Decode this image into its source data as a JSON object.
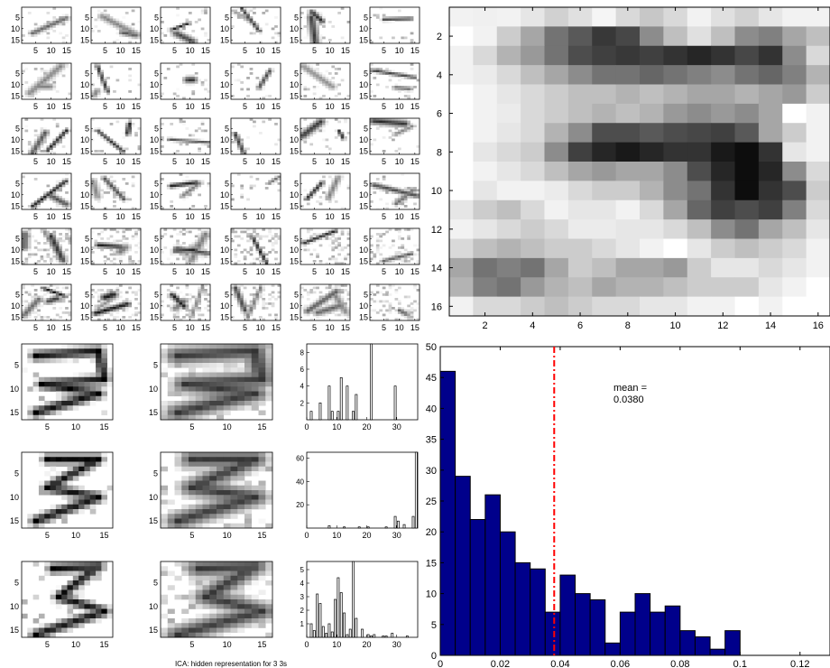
{
  "figure": {
    "caption": "ICA: hidden representation for 3 3s"
  },
  "panels": {
    "basis_grid": {
      "rows": 6,
      "cols": 6,
      "ticks": [
        5,
        10,
        15
      ],
      "xtick_labels": [
        "5",
        "10",
        "15"
      ],
      "ytick_labels": [
        "5",
        "10",
        "15"
      ]
    },
    "reconstruction_rows": [
      {
        "digit_label": "3 (first example)",
        "hist_yticks": [
          2,
          4,
          6,
          8
        ],
        "hist_ymax": 9,
        "hist_values": [
          0,
          1,
          0,
          0,
          2,
          0,
          0,
          4,
          1,
          0,
          1,
          5,
          0,
          4,
          0,
          1,
          3,
          0,
          0,
          0,
          0,
          9,
          0,
          0,
          0,
          0,
          0,
          0,
          0,
          4,
          0,
          0,
          0,
          0,
          0,
          0,
          0
        ]
      },
      {
        "digit_label": "3 (second example)",
        "hist_yticks": [
          20,
          40,
          60
        ],
        "hist_ymax": 65,
        "hist_values": [
          0,
          0,
          0,
          0,
          0,
          0,
          0,
          2,
          0,
          0,
          0,
          0,
          1,
          0,
          0,
          0,
          0,
          1,
          0,
          0,
          1,
          0,
          0,
          0,
          0,
          0,
          1,
          0,
          0,
          10,
          6,
          0,
          3,
          0,
          0,
          10,
          65
        ]
      },
      {
        "digit_label": "3 (third example)",
        "hist_yticks": [
          1,
          2,
          3,
          4,
          5
        ],
        "hist_ymax": 5.6,
        "hist_values": [
          0,
          1,
          0.5,
          3.2,
          2.5,
          0.8,
          0.3,
          1,
          0.4,
          2.8,
          4.4,
          3.3,
          1.8,
          0.2,
          0.6,
          5.6,
          1.4,
          0,
          0.6,
          0,
          0.2,
          0.1,
          0.2,
          0,
          0,
          0.1,
          0.1,
          0,
          0.3,
          0,
          0,
          0,
          0,
          0.1,
          0,
          0,
          0
        ]
      }
    ],
    "reconstruction_axes": {
      "xtick_labels": [
        "5",
        "10",
        "15"
      ],
      "ytick_labels": [
        "5",
        "10",
        "15"
      ],
      "hist_xtick_labels": [
        "0",
        "10",
        "20",
        "30"
      ]
    }
  },
  "chart_data": [
    {
      "type": "heatmap",
      "title": "",
      "xlabel": "",
      "ylabel": "",
      "xlim": [
        0.5,
        16.5
      ],
      "ylim": [
        0.5,
        16.5
      ],
      "xticks": [
        2,
        4,
        6,
        8,
        10,
        12,
        14,
        16
      ],
      "yticks": [
        2,
        4,
        6,
        8,
        10,
        12,
        14,
        16
      ],
      "colormap": "gray_reversed",
      "values": [
        [
          0.05,
          0.06,
          0.05,
          0.1,
          0.18,
          0.12,
          0.04,
          0.15,
          0.22,
          0.15,
          0.05,
          0.12,
          0.18,
          0.1,
          0.05,
          0.05
        ],
        [
          0.0,
          0.05,
          0.2,
          0.35,
          0.55,
          0.65,
          0.78,
          0.72,
          0.45,
          0.25,
          0.12,
          0.25,
          0.45,
          0.5,
          0.35,
          0.25
        ],
        [
          0.05,
          0.15,
          0.3,
          0.4,
          0.55,
          0.7,
          0.75,
          0.78,
          0.75,
          0.8,
          0.85,
          0.8,
          0.72,
          0.8,
          0.45,
          0.15
        ],
        [
          0.05,
          0.08,
          0.15,
          0.25,
          0.35,
          0.45,
          0.55,
          0.55,
          0.6,
          0.55,
          0.5,
          0.45,
          0.55,
          0.6,
          0.5,
          0.3
        ],
        [
          0.0,
          0.05,
          0.1,
          0.15,
          0.2,
          0.25,
          0.25,
          0.3,
          0.25,
          0.3,
          0.35,
          0.35,
          0.3,
          0.35,
          0.4,
          0.2
        ],
        [
          0.0,
          0.05,
          0.08,
          0.15,
          0.2,
          0.25,
          0.3,
          0.25,
          0.3,
          0.4,
          0.45,
          0.4,
          0.45,
          0.35,
          0.0,
          0.05
        ],
        [
          0.0,
          0.05,
          0.1,
          0.15,
          0.3,
          0.45,
          0.7,
          0.7,
          0.65,
          0.7,
          0.72,
          0.75,
          0.65,
          0.35,
          0.2,
          0.05
        ],
        [
          0.0,
          0.1,
          0.15,
          0.2,
          0.45,
          0.75,
          0.85,
          0.9,
          0.85,
          0.8,
          0.8,
          0.9,
          0.95,
          0.8,
          0.1,
          0.05
        ],
        [
          0.0,
          0.05,
          0.1,
          0.15,
          0.25,
          0.35,
          0.4,
          0.35,
          0.35,
          0.45,
          0.7,
          0.85,
          0.95,
          0.85,
          0.45,
          0.15
        ],
        [
          0.0,
          0.1,
          0.05,
          0.05,
          0.08,
          0.15,
          0.2,
          0.2,
          0.3,
          0.45,
          0.55,
          0.8,
          0.95,
          0.8,
          0.7,
          0.2
        ],
        [
          0.1,
          0.2,
          0.25,
          0.15,
          0.05,
          0.1,
          0.1,
          0.05,
          0.15,
          0.35,
          0.6,
          0.75,
          0.7,
          0.75,
          0.5,
          0.15
        ],
        [
          0.05,
          0.1,
          0.15,
          0.2,
          0.15,
          0.08,
          0.08,
          0.1,
          0.1,
          0.15,
          0.25,
          0.45,
          0.55,
          0.35,
          0.25,
          0.1
        ],
        [
          0.15,
          0.25,
          0.3,
          0.25,
          0.2,
          0.2,
          0.15,
          0.1,
          0.05,
          0.0,
          0.1,
          0.2,
          0.25,
          0.2,
          0.15,
          0.05
        ],
        [
          0.35,
          0.55,
          0.5,
          0.55,
          0.35,
          0.2,
          0.25,
          0.35,
          0.35,
          0.4,
          0.2,
          0.1,
          0.1,
          0.15,
          0.1,
          0.05
        ],
        [
          0.3,
          0.5,
          0.55,
          0.4,
          0.3,
          0.25,
          0.35,
          0.3,
          0.3,
          0.25,
          0.2,
          0.2,
          0.2,
          0.1,
          0.05,
          0.0
        ],
        [
          0.05,
          0.15,
          0.15,
          0.2,
          0.25,
          0.2,
          0.15,
          0.15,
          0.1,
          0.1,
          0.05,
          0.05,
          0.0,
          0.05,
          0.0,
          0.0
        ]
      ]
    },
    {
      "type": "bar",
      "title": "",
      "xlabel": "",
      "ylabel": "",
      "bin_edges": [
        0.0,
        0.005,
        0.01,
        0.015,
        0.02,
        0.025,
        0.03,
        0.035,
        0.04,
        0.045,
        0.05,
        0.055,
        0.06,
        0.065,
        0.07,
        0.075,
        0.08,
        0.085,
        0.09,
        0.095,
        0.1,
        0.105,
        0.11,
        0.115,
        0.12,
        0.125,
        0.13
      ],
      "values": [
        46,
        29,
        22,
        26,
        20,
        15,
        14,
        7,
        13,
        10,
        9,
        2,
        7,
        10,
        7,
        8,
        4,
        3,
        1,
        4,
        0,
        0,
        0,
        0,
        0,
        0
      ],
      "xlim": [
        0,
        0.13
      ],
      "ylim": [
        0,
        50
      ],
      "xticks": [
        0,
        0.02,
        0.04,
        0.06,
        0.08,
        0.1,
        0.12
      ],
      "xtick_labels": [
        "0",
        "0.02",
        "0.04",
        "0.06",
        "0.08",
        "0.1",
        "0.12"
      ],
      "yticks": [
        0,
        5,
        10,
        15,
        20,
        25,
        30,
        35,
        40,
        45,
        50
      ],
      "ytick_labels": [
        "0",
        "5",
        "10",
        "15",
        "20",
        "25",
        "30",
        "35",
        "40",
        "45",
        "50"
      ],
      "bar_color": "#00008b",
      "mean_value": 0.038,
      "mean_line_color": "#ff0000",
      "annotation": {
        "line1": "mean =",
        "line2": "0.0380"
      }
    }
  ]
}
